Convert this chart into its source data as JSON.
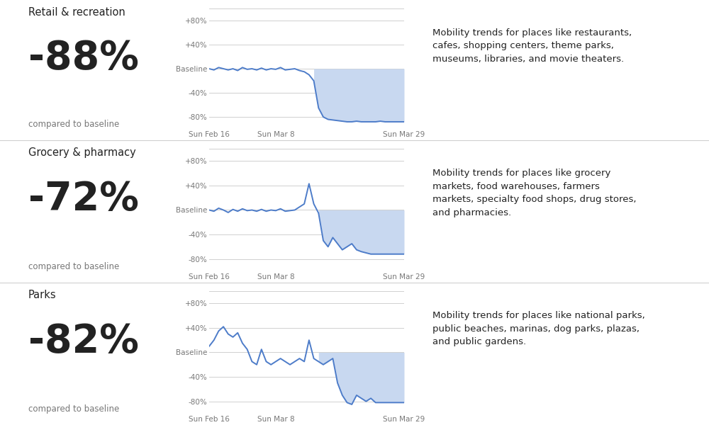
{
  "bg_color": "#ffffff",
  "line_color": "#4d7cc9",
  "fill_color": "#c8d8f0",
  "grid_color": "#d0d0d0",
  "text_color": "#222222",
  "label_color": "#777777",
  "sections": [
    {
      "title": "Retail & recreation",
      "pct": "-88%",
      "desc": "Mobility trends for places like restaurants,\ncafes, shopping centers, theme parks,\nmuseums, libraries, and movie theaters.",
      "y_values": [
        0,
        -2,
        2,
        0,
        -2,
        0,
        -3,
        2,
        -1,
        0,
        -2,
        1,
        -2,
        0,
        -1,
        2,
        -2,
        -1,
        0,
        -3,
        -5,
        -10,
        -20,
        -65,
        -80,
        -84,
        -85,
        -86,
        -87,
        -88,
        -88,
        -87,
        -88,
        -88,
        -88,
        -88,
        -87,
        -88,
        -88,
        -88,
        -88,
        -88
      ],
      "lockdown_start_idx": 22
    },
    {
      "title": "Grocery & pharmacy",
      "pct": "-72%",
      "desc": "Mobility trends for places like grocery\nmarkets, food warehouses, farmers\nmarkets, specialty food shops, drug stores,\nand pharmacies.",
      "y_values": [
        0,
        -2,
        3,
        0,
        -4,
        1,
        -2,
        2,
        -1,
        0,
        -2,
        1,
        -2,
        0,
        -1,
        2,
        -2,
        -1,
        0,
        5,
        10,
        43,
        10,
        -5,
        -50,
        -60,
        -45,
        -55,
        -65,
        -60,
        -55,
        -65,
        -68,
        -70,
        -72,
        -72,
        -72,
        -72,
        -72,
        -72,
        -72,
        -72
      ],
      "lockdown_start_idx": 23
    },
    {
      "title": "Parks",
      "pct": "-82%",
      "desc": "Mobility trends for places like national parks,\npublic beaches, marinas, dog parks, plazas,\nand public gardens.",
      "y_values": [
        10,
        20,
        35,
        42,
        30,
        25,
        32,
        15,
        5,
        -15,
        -20,
        5,
        -15,
        -20,
        -15,
        -10,
        -15,
        -20,
        -15,
        -10,
        -15,
        20,
        -10,
        -15,
        -20,
        -15,
        -10,
        -50,
        -70,
        -82,
        -85,
        -70,
        -75,
        -80,
        -75,
        -82,
        -82,
        -82,
        -82,
        -82,
        -82,
        -82
      ],
      "lockdown_start_idx": 23
    }
  ],
  "x_ticks": [
    0,
    14,
    28,
    41
  ],
  "x_tick_labels": [
    "Sun Feb 16",
    "Sun Mar 8",
    "",
    "Sun Mar 29"
  ],
  "y_ticks": [
    -80,
    -40,
    0,
    40,
    80
  ],
  "y_tick_labels": [
    "-80%",
    "-40%",
    "Baseline",
    "+40%",
    "+80%"
  ]
}
